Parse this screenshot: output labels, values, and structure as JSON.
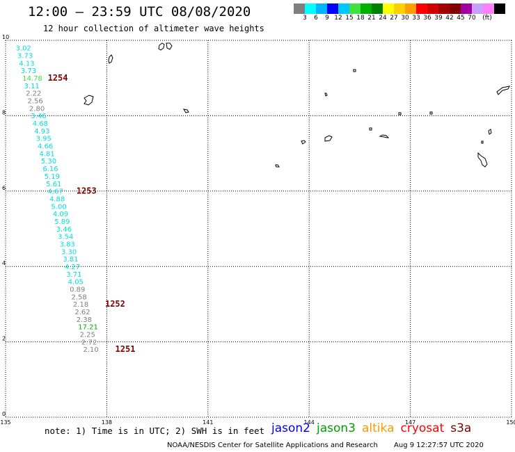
{
  "header": {
    "title": "12:00 – 23:59 UTC 08/08/2020",
    "subtitle": "12 hour collection of altimeter wave heights"
  },
  "legend": {
    "colors": [
      "#7f7f7f",
      "#00ffff",
      "#00b4ff",
      "#0000ff",
      "#00c8ff",
      "#40e040",
      "#00b000",
      "#008000",
      "#ffff00",
      "#ffd000",
      "#ffa000",
      "#ff0000",
      "#d00000",
      "#a00000",
      "#800000",
      "#a000a0",
      "#c8a0ff",
      "#ff80ff",
      "#000000"
    ],
    "labels": [
      "3",
      "6",
      "9",
      "12",
      "15",
      "18",
      "21",
      "24",
      "27",
      "30",
      "33",
      "36",
      "39",
      "42",
      "45",
      "70",
      "(ft)"
    ]
  },
  "map": {
    "lon_ticks": [
      "135",
      "138",
      "141",
      "144",
      "147",
      "150"
    ],
    "lat_ticks": [
      "0",
      "2",
      "4",
      "6",
      "8",
      "10"
    ]
  },
  "observations": [
    {
      "lon": 135.3,
      "lat": 9.73,
      "text": "3.02",
      "color": "#00e0e0"
    },
    {
      "lon": 135.35,
      "lat": 9.53,
      "text": "3.73",
      "color": "#00e0e0"
    },
    {
      "lon": 135.4,
      "lat": 9.33,
      "text": "4.13",
      "color": "#00e0e0"
    },
    {
      "lon": 135.45,
      "lat": 9.13,
      "text": "3.73",
      "color": "#00e0e0"
    },
    {
      "lon": 135.5,
      "lat": 8.93,
      "text": "14.78",
      "color": "#40e040"
    },
    {
      "lon": 135.55,
      "lat": 8.73,
      "text": "3.11",
      "color": "#00e0e0"
    },
    {
      "lon": 135.6,
      "lat": 8.53,
      "text": "2.22",
      "color": "#7f7f7f"
    },
    {
      "lon": 135.65,
      "lat": 8.33,
      "text": "2.56",
      "color": "#7f7f7f"
    },
    {
      "lon": 135.7,
      "lat": 8.13,
      "text": "2.80",
      "color": "#7f7f7f"
    },
    {
      "lon": 135.75,
      "lat": 7.93,
      "text": "3.46",
      "color": "#00e0e0"
    },
    {
      "lon": 135.8,
      "lat": 7.73,
      "text": "4.68",
      "color": "#00e0e0"
    },
    {
      "lon": 135.85,
      "lat": 7.53,
      "text": "4.93",
      "color": "#00e0e0"
    },
    {
      "lon": 135.9,
      "lat": 7.33,
      "text": "3.95",
      "color": "#00e0e0"
    },
    {
      "lon": 135.95,
      "lat": 7.13,
      "text": "4.66",
      "color": "#00e0e0"
    },
    {
      "lon": 136.0,
      "lat": 6.93,
      "text": "4.81",
      "color": "#00e0e0"
    },
    {
      "lon": 136.05,
      "lat": 6.73,
      "text": "5.30",
      "color": "#00e0e0"
    },
    {
      "lon": 136.1,
      "lat": 6.53,
      "text": "6.16",
      "color": "#00e0e0"
    },
    {
      "lon": 136.15,
      "lat": 6.33,
      "text": "5.19",
      "color": "#00e0e0"
    },
    {
      "lon": 136.2,
      "lat": 6.13,
      "text": "5.61",
      "color": "#00e0e0"
    },
    {
      "lon": 136.25,
      "lat": 5.93,
      "text": "4.67",
      "color": "#00e0e0"
    },
    {
      "lon": 136.3,
      "lat": 5.73,
      "text": "4.88",
      "color": "#00e0e0"
    },
    {
      "lon": 136.35,
      "lat": 5.53,
      "text": "5.00",
      "color": "#00e0e0"
    },
    {
      "lon": 136.4,
      "lat": 5.33,
      "text": "4.09",
      "color": "#00e0e0"
    },
    {
      "lon": 136.45,
      "lat": 5.13,
      "text": "5.89",
      "color": "#00e0e0"
    },
    {
      "lon": 136.5,
      "lat": 4.93,
      "text": "3.46",
      "color": "#00e0e0"
    },
    {
      "lon": 136.55,
      "lat": 4.73,
      "text": "3.54",
      "color": "#00e0e0"
    },
    {
      "lon": 136.6,
      "lat": 4.53,
      "text": "3.83",
      "color": "#00e0e0"
    },
    {
      "lon": 136.65,
      "lat": 4.33,
      "text": "3.30",
      "color": "#00e0e0"
    },
    {
      "lon": 136.7,
      "lat": 4.13,
      "text": "3.81",
      "color": "#00e0e0"
    },
    {
      "lon": 136.75,
      "lat": 3.93,
      "text": "4.27",
      "color": "#00e0e0"
    },
    {
      "lon": 136.8,
      "lat": 3.73,
      "text": "3.71",
      "color": "#00e0e0"
    },
    {
      "lon": 136.85,
      "lat": 3.53,
      "text": "4.05",
      "color": "#00e0e0"
    },
    {
      "lon": 136.9,
      "lat": 3.33,
      "text": "0.89",
      "color": "#7f7f7f"
    },
    {
      "lon": 136.95,
      "lat": 3.13,
      "text": "2.58",
      "color": "#7f7f7f"
    },
    {
      "lon": 137.0,
      "lat": 2.93,
      "text": "2.18",
      "color": "#7f7f7f"
    },
    {
      "lon": 137.05,
      "lat": 2.73,
      "text": "2.62",
      "color": "#7f7f7f"
    },
    {
      "lon": 137.1,
      "lat": 2.53,
      "text": "2.38",
      "color": "#7f7f7f"
    },
    {
      "lon": 137.15,
      "lat": 2.33,
      "text": "17.21",
      "color": "#00b000"
    },
    {
      "lon": 137.2,
      "lat": 2.13,
      "text": "2.25",
      "color": "#7f7f7f"
    },
    {
      "lon": 137.25,
      "lat": 1.93,
      "text": "2.72",
      "color": "#7f7f7f"
    },
    {
      "lon": 137.3,
      "lat": 1.73,
      "text": "2.10",
      "color": "#7f7f7f"
    }
  ],
  "passes": [
    {
      "lon": 136.25,
      "lat": 8.93,
      "text": "1254"
    },
    {
      "lon": 137.1,
      "lat": 5.93,
      "text": "1253"
    },
    {
      "lon": 137.95,
      "lat": 2.93,
      "text": "1252"
    },
    {
      "lon": 138.25,
      "lat": 1.73,
      "text": "1251"
    }
  ],
  "note": "note: 1) Time is in UTC; 2) SWH is in feet",
  "satellites": [
    {
      "name": "jason2",
      "color": "#0000ff"
    },
    {
      "name": "jason3",
      "color": "#00a000"
    },
    {
      "name": "altika",
      "color": "#ff9900"
    },
    {
      "name": "cryosat",
      "color": "#ff0000"
    },
    {
      "name": "s3a",
      "color": "#800000"
    }
  ],
  "footer": {
    "credit": "NOAA/NESDIS Center for Satellite Applications and Research",
    "timestamp": "Aug  9 12:27:57 UTC 2020"
  }
}
